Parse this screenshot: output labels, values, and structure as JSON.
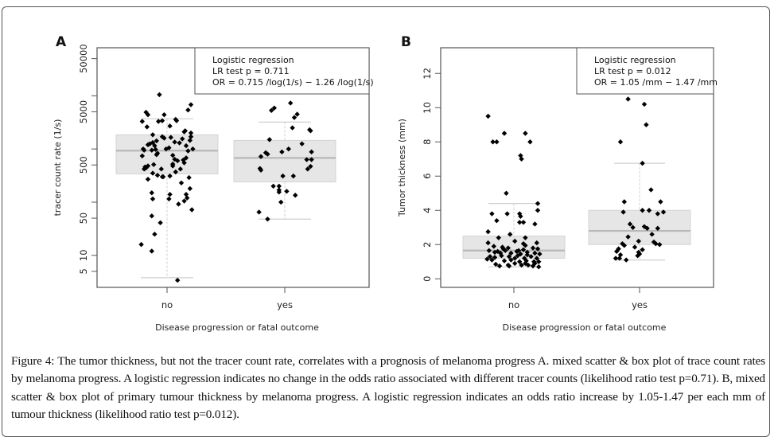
{
  "figure": {
    "caption_label": "Figure 4:",
    "caption_text": " The tumor thickness, but not the tracer count rate, correlates with a prognosis of melanoma progress A. mixed scatter & box plot of trace count rates by melanoma progress. A logistic regression indicates no change in the odds ratio associated with different tracer counts (likelihood ratio test p=0.71). B, mixed scatter & box plot of primary tumour thickness by melanoma progress. A logistic regression indicates an odds ratio increase by 1.05-1.47 per each mm of tumour thickness (likelihood ratio test p=0.012)."
  },
  "colors": {
    "box_fill": "#e6e6e6",
    "box_stroke": "#d4d4d4",
    "median": "#b8b8b8",
    "whisker": "#cfcfcf",
    "point": "#000000",
    "axis": "#555555"
  },
  "chart_data": [
    {
      "panel": "A",
      "type": "box+scatter",
      "title": "",
      "xlabel": "Disease progression or fatal outcome",
      "ylabel": "tracer count rate (1/s)",
      "yscale": "log",
      "ylim": [
        2.5,
        80000
      ],
      "yticks": [
        5,
        10,
        50,
        500,
        5000,
        50000
      ],
      "yticks_minor": [
        100,
        1000,
        10000
      ],
      "ytick_labels": [
        "5",
        "10",
        "50",
        "500",
        "5000",
        "50000"
      ],
      "categories": [
        "no",
        "yes"
      ],
      "legend": {
        "placement": "top-right",
        "lines": [
          "Logistic regression",
          "LR test p = 0.711",
          "OR = 0.715 /log(1/s) − 1.26 /log(1/s)"
        ]
      },
      "boxes": [
        {
          "category": "no",
          "whisker_low": 3.8,
          "q1": 340,
          "median": 930,
          "q3": 1850,
          "whisker_high": 3700
        },
        {
          "category": "yes",
          "whisker_low": 48,
          "q1": 240,
          "median": 680,
          "q3": 1450,
          "whisker_high": 3200
        }
      ],
      "points": {
        "no": [
          [
            -0.08,
            10500
          ],
          [
            0.25,
            6800
          ],
          [
            0.22,
            5400
          ],
          [
            -0.22,
            4900
          ],
          [
            -0.2,
            4400
          ],
          [
            -0.03,
            4400
          ],
          [
            0.09,
            3600
          ],
          [
            0.1,
            3400
          ],
          [
            -0.26,
            3300
          ],
          [
            -0.09,
            3300
          ],
          [
            -0.05,
            3400
          ],
          [
            0.03,
            2700
          ],
          [
            -0.21,
            2600
          ],
          [
            0.19,
            2200
          ],
          [
            0.18,
            2100
          ],
          [
            0.25,
            2000
          ],
          [
            -0.15,
            1850
          ],
          [
            -0.05,
            1700
          ],
          [
            -0.03,
            1600
          ],
          [
            0.04,
            1650
          ],
          [
            0.16,
            1550
          ],
          [
            -0.11,
            1420
          ],
          [
            0.25,
            1700
          ],
          [
            0.24,
            1450
          ],
          [
            -0.18,
            1250
          ],
          [
            -0.2,
            1200
          ],
          [
            -0.15,
            1320
          ],
          [
            -0.13,
            1150
          ],
          [
            0.08,
            1350
          ],
          [
            0.13,
            1300
          ],
          [
            -0.25,
            1000
          ],
          [
            -0.24,
            950
          ],
          [
            -0.16,
            950
          ],
          [
            -0.12,
            980
          ],
          [
            -0.01,
            1000
          ],
          [
            0.02,
            1050
          ],
          [
            0.2,
            1150
          ],
          [
            0.27,
            1000
          ],
          [
            0.22,
            920
          ],
          [
            -0.1,
            830
          ],
          [
            -0.11,
            780
          ],
          [
            0.06,
            760
          ],
          [
            -0.26,
            740
          ],
          [
            0.2,
            680
          ],
          [
            0.08,
            640
          ],
          [
            0.11,
            600
          ],
          [
            0.17,
            620
          ],
          [
            0.18,
            550
          ],
          [
            0.06,
            520
          ],
          [
            -0.23,
            460
          ],
          [
            -0.22,
            440
          ],
          [
            -0.2,
            480
          ],
          [
            -0.14,
            510
          ],
          [
            -0.06,
            420
          ],
          [
            0.06,
            480
          ],
          [
            -0.24,
            420
          ],
          [
            0.14,
            420
          ],
          [
            -0.15,
            350
          ],
          [
            0.09,
            370
          ],
          [
            -0.1,
            320
          ],
          [
            -0.05,
            300
          ],
          [
            -0.04,
            300
          ],
          [
            0.03,
            310
          ],
          [
            0.23,
            290
          ],
          [
            0.15,
            230
          ],
          [
            -0.2,
            270
          ],
          [
            0.24,
            180
          ],
          [
            -0.16,
            150
          ],
          [
            0.03,
            140
          ],
          [
            0.2,
            140
          ],
          [
            -0.15,
            115
          ],
          [
            0.02,
            115
          ],
          [
            0.21,
            120
          ],
          [
            0.18,
            105
          ],
          [
            0.12,
            92
          ],
          [
            0.26,
            72
          ],
          [
            -0.16,
            55
          ],
          [
            -0.07,
            41
          ],
          [
            -0.13,
            25
          ],
          [
            -0.27,
            16
          ],
          [
            -0.16,
            12
          ],
          [
            0.11,
            3.4
          ]
        ],
        "yes": [
          [
            0.06,
            7300
          ],
          [
            -0.14,
            5300
          ],
          [
            -0.11,
            5900
          ],
          [
            0.13,
            4500
          ],
          [
            0.1,
            3900
          ],
          [
            0.08,
            2500
          ],
          [
            0.26,
            2300
          ],
          [
            0.27,
            2200
          ],
          [
            -0.16,
            1500
          ],
          [
            0.18,
            1250
          ],
          [
            0.04,
            1000
          ],
          [
            -0.2,
            850
          ],
          [
            -0.18,
            800
          ],
          [
            -0.03,
            880
          ],
          [
            -0.25,
            720
          ],
          [
            0.28,
            880
          ],
          [
            0.23,
            630
          ],
          [
            0.28,
            630
          ],
          [
            0.27,
            470
          ],
          [
            0.24,
            420
          ],
          [
            -0.26,
            430
          ],
          [
            -0.25,
            400
          ],
          [
            -0.02,
            310
          ],
          [
            0.09,
            310
          ],
          [
            -0.12,
            200
          ],
          [
            -0.06,
            200
          ],
          [
            -0.06,
            170
          ],
          [
            -0.06,
            155
          ],
          [
            0.02,
            160
          ],
          [
            0.11,
            135
          ],
          [
            -0.04,
            100
          ],
          [
            -0.27,
            65
          ],
          [
            -0.18,
            48
          ]
        ]
      }
    },
    {
      "panel": "B",
      "type": "box+scatter",
      "title": "",
      "xlabel": "Disease progression or fatal outcome",
      "ylabel": "Tumor thickness (mm)",
      "yscale": "linear",
      "ylim": [
        -0.5,
        13.5
      ],
      "yticks": [
        0,
        2,
        4,
        6,
        8,
        10,
        12
      ],
      "ytick_labels": [
        "0",
        "2",
        "4",
        "6",
        "8",
        "10",
        "12"
      ],
      "categories": [
        "no",
        "yes"
      ],
      "legend": {
        "placement": "top-right",
        "lines": [
          "Logistic regression",
          "LR test p = 0.012",
          "OR = 1.05 /mm − 1.47 /mm"
        ]
      },
      "boxes": [
        {
          "category": "no",
          "whisker_low": 0.7,
          "q1": 1.2,
          "median": 1.65,
          "q3": 2.5,
          "whisker_high": 4.4
        },
        {
          "category": "yes",
          "whisker_low": 1.1,
          "q1": 2.0,
          "median": 2.8,
          "q3": 4.0,
          "whisker_high": 6.75
        }
      ],
      "points": {
        "no": [
          [
            -0.27,
            9.5
          ],
          [
            -0.1,
            8.5
          ],
          [
            0.12,
            8.5
          ],
          [
            -0.22,
            8.0
          ],
          [
            -0.18,
            8.0
          ],
          [
            0.17,
            8.0
          ],
          [
            0.07,
            7.2
          ],
          [
            0.08,
            7.0
          ],
          [
            -0.08,
            5.0
          ],
          [
            0.25,
            4.4
          ],
          [
            0.25,
            4.0
          ],
          [
            -0.23,
            3.8
          ],
          [
            -0.07,
            3.8
          ],
          [
            0.06,
            3.8
          ],
          [
            0.07,
            3.65
          ],
          [
            -0.18,
            3.4
          ],
          [
            0.06,
            3.3
          ],
          [
            0.1,
            3.3
          ],
          [
            0.22,
            3.2
          ],
          [
            -0.27,
            2.75
          ],
          [
            -0.04,
            2.6
          ],
          [
            -0.16,
            2.4
          ],
          [
            0.12,
            2.4
          ],
          [
            0.01,
            2.2
          ],
          [
            0.1,
            2.05
          ],
          [
            0.12,
            1.95
          ],
          [
            0.24,
            2.1
          ],
          [
            -0.27,
            2.1
          ],
          [
            -0.21,
            1.9
          ],
          [
            -0.12,
            1.85
          ],
          [
            -0.11,
            1.75
          ],
          [
            -0.06,
            1.8
          ],
          [
            0.05,
            1.65
          ],
          [
            0.1,
            1.7
          ],
          [
            0.14,
            1.55
          ],
          [
            0.2,
            1.8
          ],
          [
            0.25,
            1.75
          ],
          [
            -0.26,
            1.65
          ],
          [
            -0.2,
            1.55
          ],
          [
            -0.17,
            1.6
          ],
          [
            -0.14,
            1.5
          ],
          [
            -0.09,
            1.65
          ],
          [
            -0.03,
            1.5
          ],
          [
            0.03,
            1.6
          ],
          [
            0.07,
            1.45
          ],
          [
            0.14,
            1.4
          ],
          [
            0.22,
            1.5
          ],
          [
            0.27,
            1.45
          ],
          [
            -0.25,
            1.3
          ],
          [
            -0.2,
            1.25
          ],
          [
            -0.13,
            1.35
          ],
          [
            -0.05,
            1.3
          ],
          [
            0.01,
            1.2
          ],
          [
            0.04,
            1.35
          ],
          [
            0.11,
            1.2
          ],
          [
            0.18,
            1.3
          ],
          [
            0.24,
            1.2
          ],
          [
            -0.28,
            1.15
          ],
          [
            -0.23,
            1.1
          ],
          [
            -0.1,
            1.05
          ],
          [
            -0.03,
            1.1
          ],
          [
            0.06,
            1.0
          ],
          [
            0.13,
            1.05
          ],
          [
            0.21,
            1.0
          ],
          [
            0.26,
            1.0
          ],
          [
            -0.19,
            0.85
          ],
          [
            -0.15,
            0.75
          ],
          [
            -0.06,
            0.8
          ],
          [
            0.01,
            0.9
          ],
          [
            0.08,
            0.8
          ],
          [
            0.15,
            0.8
          ],
          [
            0.2,
            0.75
          ],
          [
            0.26,
            0.7
          ],
          [
            -0.05,
            0.75
          ],
          [
            0.12,
            0.9
          ],
          [
            0.22,
            0.9
          ]
        ],
        "yes": [
          [
            -0.12,
            10.5
          ],
          [
            0.05,
            10.2
          ],
          [
            0.07,
            9.0
          ],
          [
            -0.2,
            8.0
          ],
          [
            0.03,
            6.75
          ],
          [
            0.12,
            5.2
          ],
          [
            -0.16,
            4.5
          ],
          [
            0.22,
            4.5
          ],
          [
            -0.17,
            3.9
          ],
          [
            0.03,
            4.0
          ],
          [
            0.1,
            4.0
          ],
          [
            0.19,
            3.8
          ],
          [
            0.25,
            3.9
          ],
          [
            -0.1,
            3.2
          ],
          [
            -0.07,
            3.0
          ],
          [
            0.05,
            3.05
          ],
          [
            0.08,
            2.95
          ],
          [
            0.19,
            2.95
          ],
          [
            0.13,
            2.6
          ],
          [
            -0.12,
            2.45
          ],
          [
            -0.01,
            2.2
          ],
          [
            0.15,
            2.15
          ],
          [
            0.17,
            2.05
          ],
          [
            0.21,
            2.0
          ],
          [
            -0.18,
            2.05
          ],
          [
            -0.16,
            1.95
          ],
          [
            -0.05,
            1.85
          ],
          [
            -0.22,
            1.75
          ],
          [
            -0.24,
            1.6
          ],
          [
            -0.2,
            1.4
          ],
          [
            -0.25,
            1.2
          ],
          [
            -0.21,
            1.2
          ],
          [
            -0.14,
            1.1
          ],
          [
            -0.02,
            1.35
          ],
          [
            -0.01,
            1.55
          ],
          [
            0.03,
            1.7
          ],
          [
            0.0,
            1.45
          ]
        ]
      }
    }
  ]
}
